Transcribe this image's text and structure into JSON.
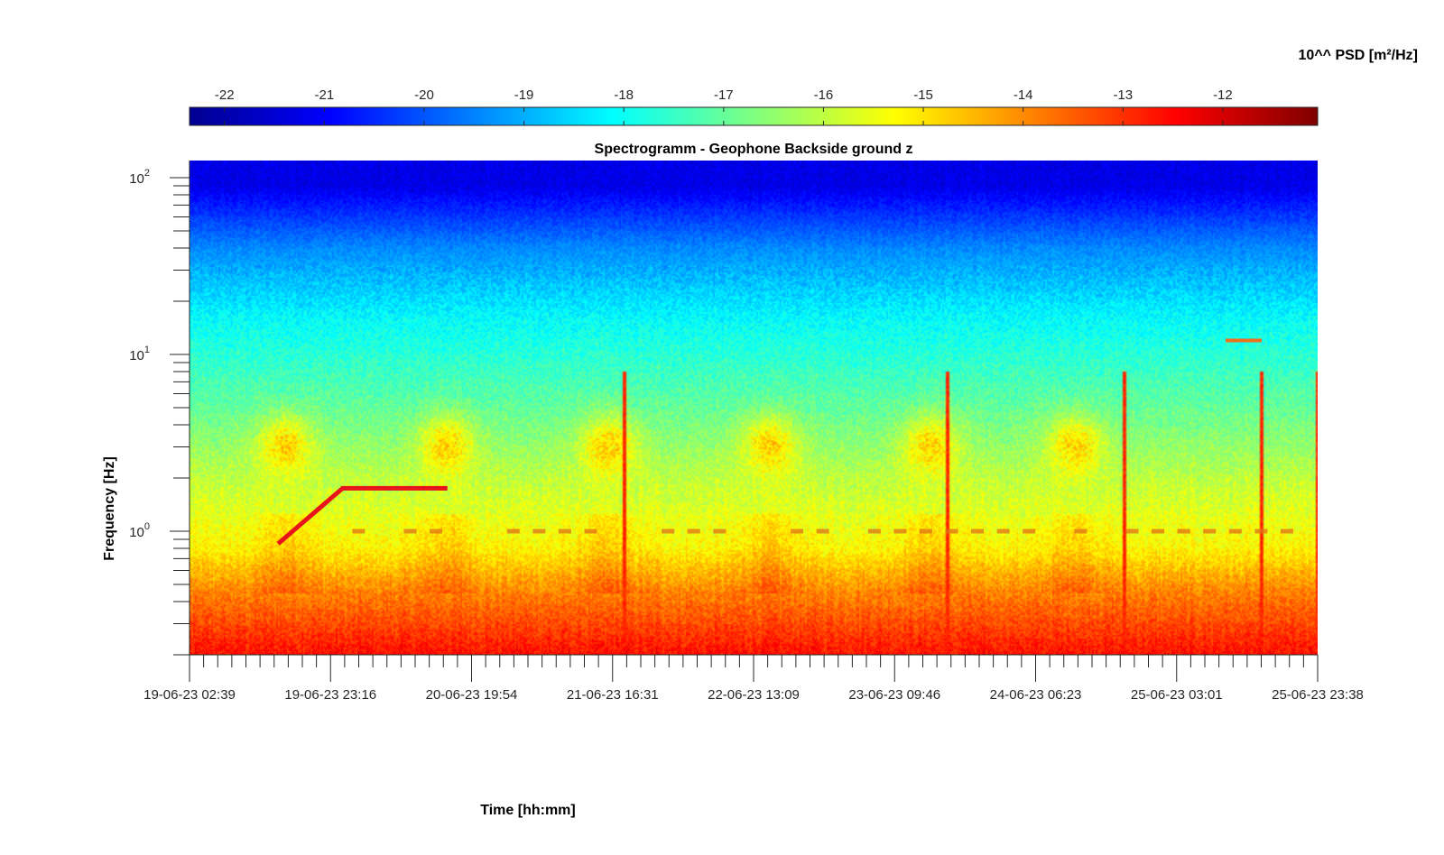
{
  "chart_data": {
    "type": "heatmap",
    "title": "Spectrogramm - Geophone Backside ground z",
    "xlabel": "Time [hh:mm]",
    "ylabel": "Frequency [Hz]",
    "colorbar": {
      "label": "10^^ PSD [m²/Hz]",
      "ticks": [
        "-22",
        "-21",
        "-20",
        "-19",
        "-18",
        "-17",
        "-16",
        "-15",
        "-14",
        "-13",
        "-12"
      ],
      "range": [
        -22.35,
        -11.05
      ],
      "colormap": "jet"
    },
    "x_tick_labels": [
      "19-06-23 02:39",
      "19-06-23 23:16",
      "20-06-23 19:54",
      "21-06-23 16:31",
      "22-06-23 13:09",
      "23-06-23 09:46",
      "24-06-23 06:23",
      "25-06-23 03:01",
      "25-06-23 23:38"
    ],
    "x_range": [
      "19-06-23 02:39",
      "25-06-23 23:38"
    ],
    "ylim": [
      0.2,
      125
    ],
    "yscale": "log",
    "y_ticks": [
      {
        "value": 1,
        "base": "10",
        "exp": "0"
      },
      {
        "value": 10,
        "base": "10",
        "exp": "1"
      },
      {
        "value": 100,
        "base": "10",
        "exp": "2"
      }
    ],
    "features": {
      "day_activity_bursts_hz": [
        2,
        5
      ],
      "constant_line_hz": 1.0,
      "chirp_segment_hz": [
        0.85,
        1.75
      ],
      "vertical_transients_days": [
        2.7,
        4.7,
        5.8,
        6.65,
        7.0
      ],
      "low_frequency_floor_log_psd": -12.6
    },
    "colors": {
      "low": "#00008f",
      "mid": "#7fff7f",
      "high": "#7f0000"
    }
  }
}
